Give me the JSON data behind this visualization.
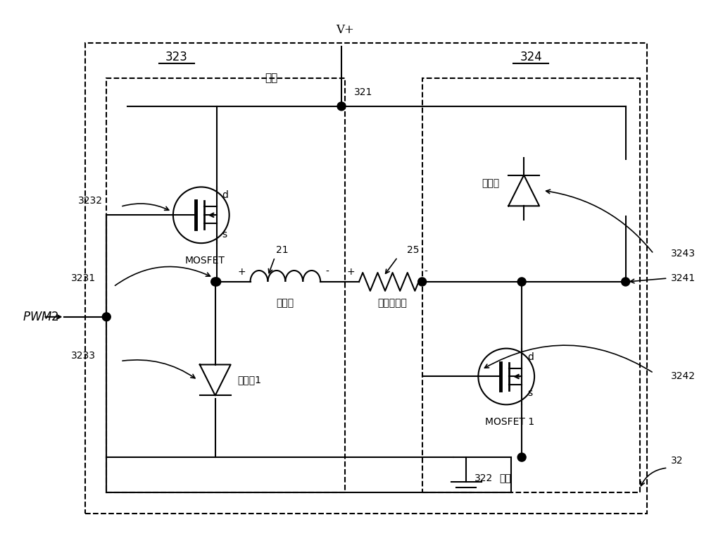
{
  "bg_color": "#ffffff",
  "line_color": "#000000",
  "fig_width": 10.0,
  "fig_height": 7.85,
  "labels": {
    "vplus": "V+",
    "label321": "321",
    "label322": "322",
    "label32": "32",
    "label323": "323",
    "label324": "324",
    "power": "电源",
    "ground_label": "接地",
    "pwm2": "PWM2",
    "mosfet": "MOSFET",
    "mosfet1": "MOSFET 1",
    "diode1": "二极管1",
    "diode": "二极管",
    "inductor_label": "21",
    "resistor_label": "25",
    "node3231": "3231",
    "node3232": "3232",
    "node3233": "3233",
    "node3241": "3241",
    "node3242": "3242",
    "node3243": "3243",
    "d_top": "d",
    "s_top": "s",
    "d_bot": "d",
    "s_bot": "s",
    "em_valve": "电磁阀",
    "current_sensor": "电流传感器",
    "plus1": "+",
    "minus1": "-",
    "plus2": "+",
    "minus2": "-"
  }
}
